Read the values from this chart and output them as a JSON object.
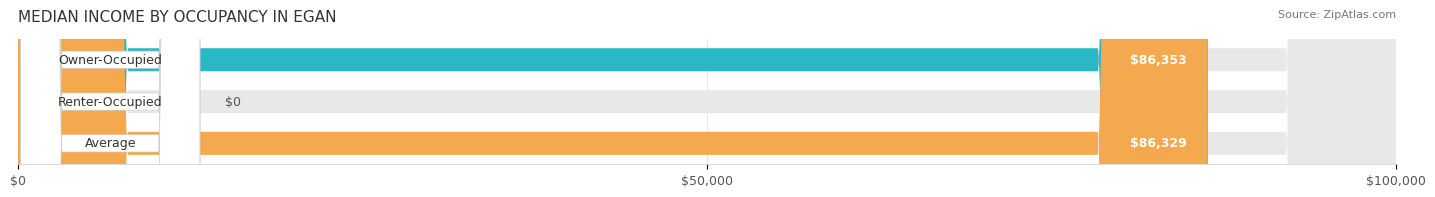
{
  "title": "MEDIAN INCOME BY OCCUPANCY IN EGAN",
  "source": "Source: ZipAtlas.com",
  "categories": [
    "Owner-Occupied",
    "Renter-Occupied",
    "Average"
  ],
  "values": [
    86353,
    0,
    86329
  ],
  "bar_colors": [
    "#2ab8c5",
    "#c4aed4",
    "#f5a94e"
  ],
  "bar_bg_color": "#f0f0f0",
  "value_labels": [
    "$86,353",
    "$0",
    "$86,329"
  ],
  "xlim": [
    0,
    100000
  ],
  "xticks": [
    0,
    50000,
    100000
  ],
  "xtick_labels": [
    "$0",
    "$50,000",
    "$100,000"
  ],
  "title_fontsize": 11,
  "label_fontsize": 9,
  "source_fontsize": 8,
  "bar_height": 0.55,
  "background_color": "#ffffff"
}
